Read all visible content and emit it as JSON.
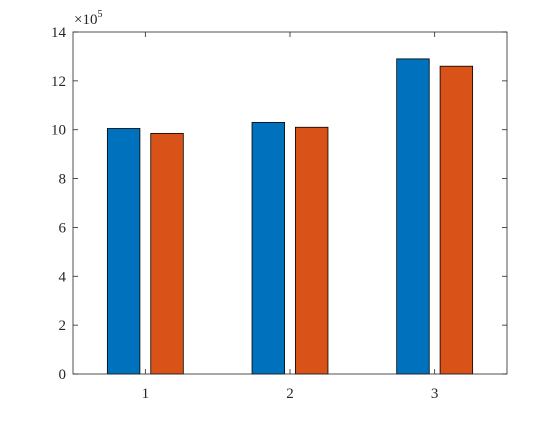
{
  "chart_data": {
    "type": "bar",
    "categories": [
      "1",
      "2",
      "3"
    ],
    "series": [
      {
        "color": "#0072BD",
        "values": [
          1005000,
          1030000,
          1290000
        ]
      },
      {
        "color": "#D95319",
        "values": [
          985000,
          1010000,
          1260000
        ]
      }
    ],
    "ylim": [
      0,
      1400000
    ],
    "y_ticks": [
      0,
      200000,
      400000,
      600000,
      800000,
      1000000,
      1200000,
      1400000
    ],
    "y_tick_labels": [
      "0",
      "2",
      "4",
      "6",
      "8",
      "10",
      "12",
      "14"
    ],
    "y_exponent_base": "×10",
    "y_exponent_power": "5",
    "title": "",
    "xlabel": "",
    "ylabel": "",
    "grid": false,
    "box": true,
    "axis_color": "#262626"
  }
}
